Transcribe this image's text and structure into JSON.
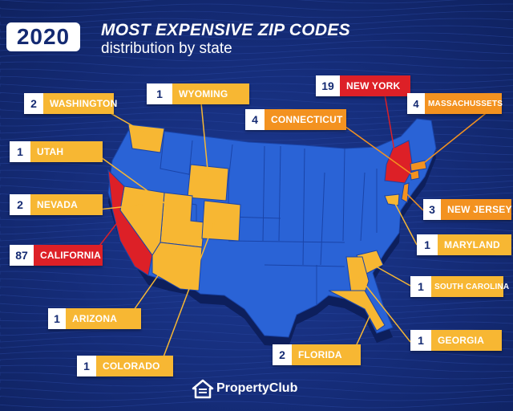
{
  "header": {
    "year": "2020",
    "title": "MOST EXPENSIVE ZIP CODES",
    "subtitle": "distribution by state"
  },
  "colors": {
    "background": "#152c78",
    "map_blue": "#2a63d6",
    "one": "#f7b733",
    "few": "#f39220",
    "many": "#dd2027",
    "label_count_bg": "#ffffff"
  },
  "states": [
    {
      "name": "WASHINGTON",
      "count": "2",
      "color": "yellow"
    },
    {
      "name": "WYOMING",
      "count": "1",
      "color": "yellow"
    },
    {
      "name": "UTAH",
      "count": "1",
      "color": "yellow"
    },
    {
      "name": "NEVADA",
      "count": "2",
      "color": "yellow"
    },
    {
      "name": "CALIFORNIA",
      "count": "87",
      "color": "red"
    },
    {
      "name": "ARIZONA",
      "count": "1",
      "color": "yellow"
    },
    {
      "name": "COLORADO",
      "count": "1",
      "color": "yellow"
    },
    {
      "name": "NEW YORK",
      "count": "19",
      "color": "red"
    },
    {
      "name": "CONNECTICUT",
      "count": "4",
      "color": "orange"
    },
    {
      "name": "MASSACHUSSETS",
      "count": "4",
      "color": "orange"
    },
    {
      "name": "NEW JERSEY",
      "count": "3",
      "color": "orange"
    },
    {
      "name": "MARYLAND",
      "count": "1",
      "color": "yellow"
    },
    {
      "name": "SOUTH CAROLINA",
      "count": "1",
      "color": "yellow"
    },
    {
      "name": "GEORGIA",
      "count": "1",
      "color": "yellow"
    },
    {
      "name": "FLORIDA",
      "count": "2",
      "color": "yellow"
    }
  ],
  "footer": {
    "brand": "PropertyClub",
    "logo_icon": "house-logo-icon"
  }
}
